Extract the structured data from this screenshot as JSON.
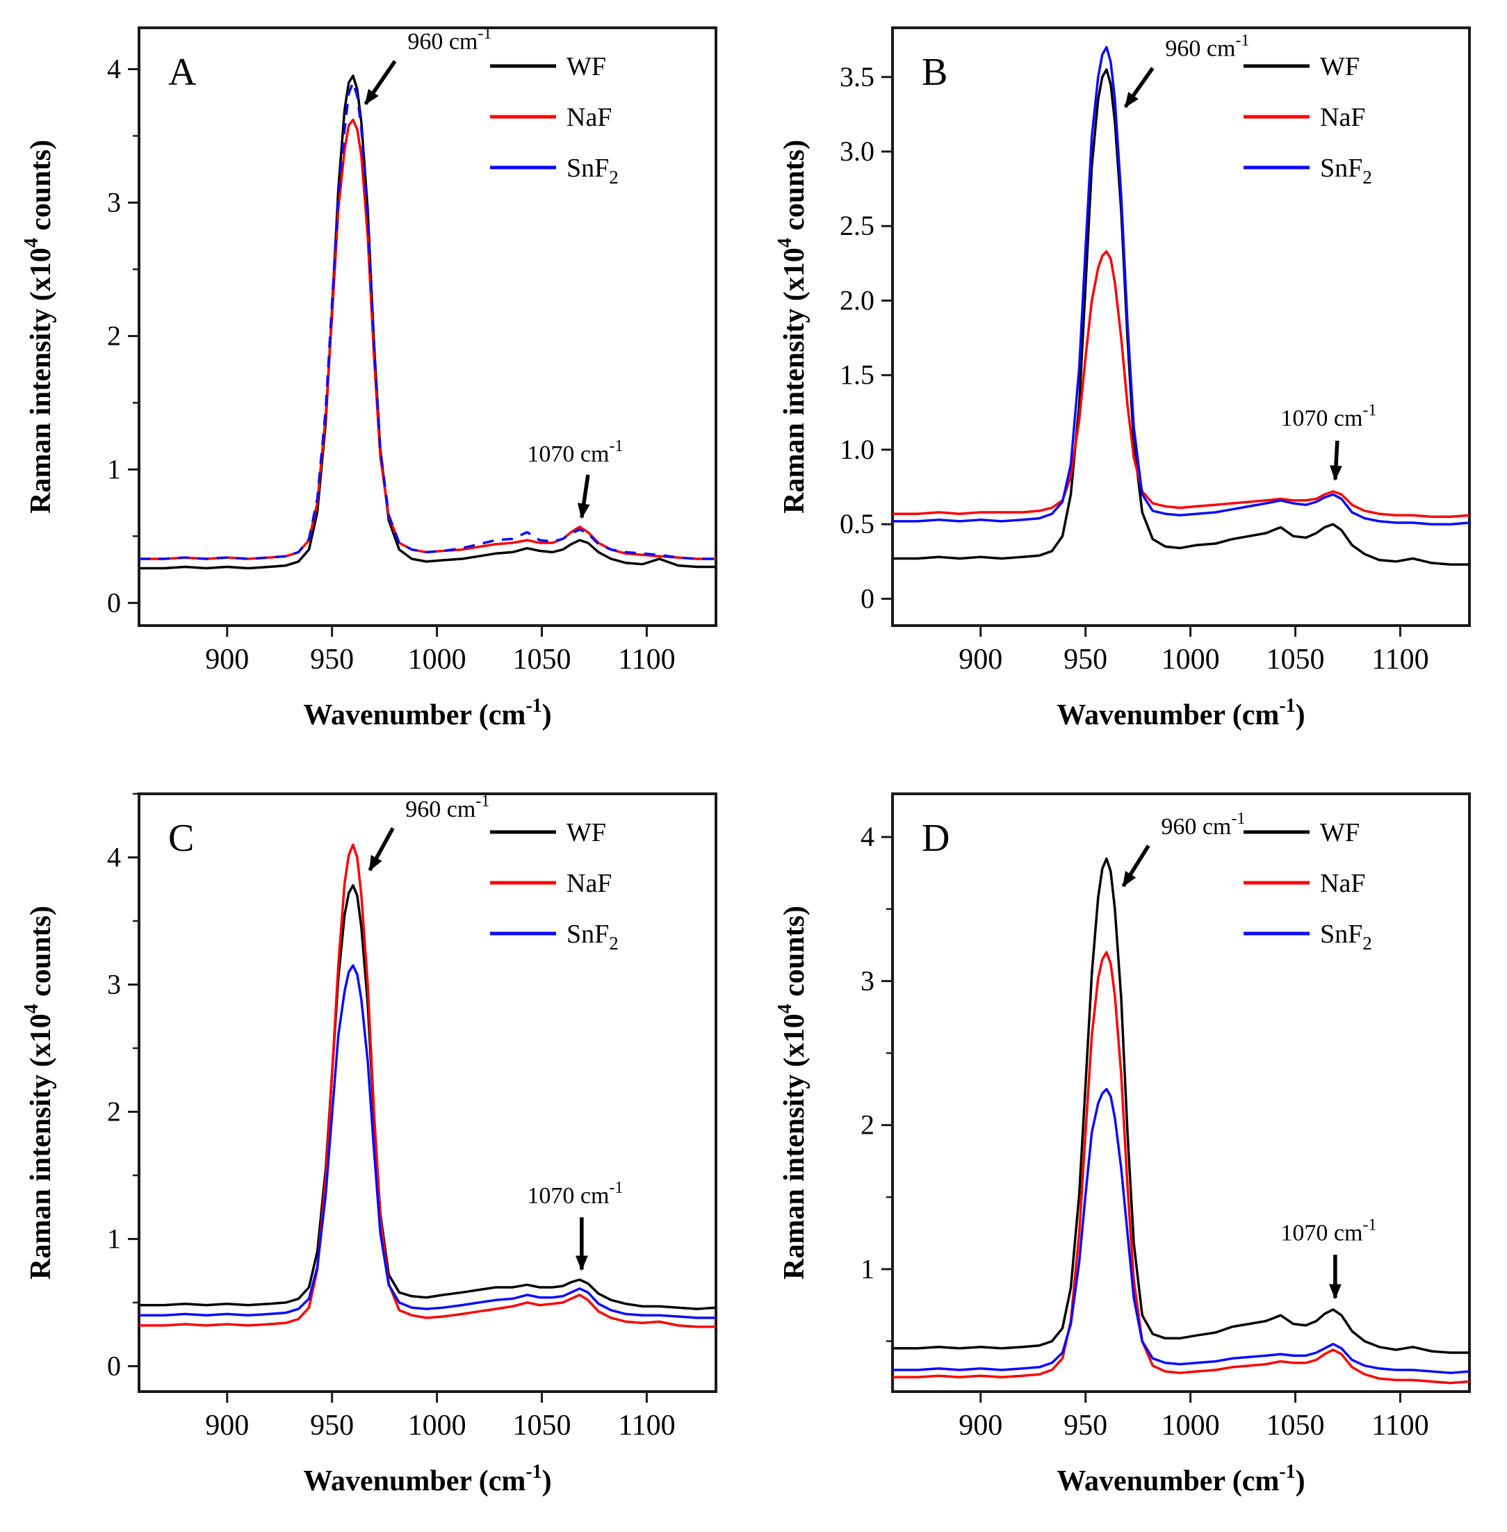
{
  "colors": {
    "WF": "#000000",
    "NaF": "#fe0000",
    "SnF2": "#0a0aff",
    "frame": "#1a1a1a",
    "background": "#ffffff"
  },
  "legend": [
    {
      "name": "WF",
      "label": "WF",
      "sub": ""
    },
    {
      "name": "NaF",
      "label": "NaF",
      "sub": ""
    },
    {
      "name": "SnF2",
      "label": "SnF",
      "sub": "2"
    }
  ],
  "axis": {
    "xlabel": {
      "pre": "Wavenumber (cm",
      "sup": "-1",
      "post": ")"
    },
    "ylabel": {
      "pre": "Raman intensity (x10",
      "sup": "4",
      "post": " counts)"
    }
  },
  "chart_data": [
    {
      "id": "A",
      "type": "line",
      "letter": "A",
      "xlim": [
        858,
        1133
      ],
      "ylim": [
        -0.17,
        4.31
      ],
      "xticks": [
        900,
        950,
        1000,
        1050,
        1100
      ],
      "yticks": [
        {
          "v": 0,
          "label": "0"
        },
        {
          "v": 1,
          "label": "1"
        },
        {
          "v": 2,
          "label": "2"
        },
        {
          "v": 3,
          "label": "3"
        },
        {
          "v": 4,
          "label": "4"
        }
      ],
      "minor_step": 0.5,
      "x": [
        858,
        870,
        880,
        890,
        900,
        910,
        920,
        928,
        934,
        939,
        943,
        947,
        950,
        953,
        956,
        958,
        960,
        962,
        964,
        967,
        970,
        973,
        977,
        982,
        988,
        995,
        1003,
        1012,
        1020,
        1028,
        1036,
        1043,
        1049,
        1055,
        1060,
        1064,
        1068,
        1072,
        1077,
        1083,
        1090,
        1098,
        1106,
        1115,
        1124,
        1133
      ],
      "series": [
        {
          "name": "WF",
          "values": [
            0.26,
            0.26,
            0.27,
            0.26,
            0.27,
            0.26,
            0.27,
            0.28,
            0.31,
            0.4,
            0.68,
            1.35,
            2.2,
            3.1,
            3.7,
            3.9,
            3.95,
            3.85,
            3.6,
            2.95,
            1.95,
            1.15,
            0.62,
            0.4,
            0.33,
            0.31,
            0.32,
            0.33,
            0.35,
            0.37,
            0.38,
            0.41,
            0.39,
            0.38,
            0.4,
            0.44,
            0.47,
            0.45,
            0.38,
            0.33,
            0.3,
            0.29,
            0.33,
            0.28,
            0.27,
            0.27
          ]
        },
        {
          "name": "NaF",
          "values": [
            0.33,
            0.33,
            0.34,
            0.33,
            0.34,
            0.33,
            0.34,
            0.35,
            0.38,
            0.47,
            0.75,
            1.4,
            2.15,
            2.95,
            3.4,
            3.58,
            3.62,
            3.55,
            3.35,
            2.75,
            1.85,
            1.1,
            0.65,
            0.45,
            0.4,
            0.38,
            0.39,
            0.4,
            0.42,
            0.44,
            0.45,
            0.47,
            0.45,
            0.45,
            0.48,
            0.53,
            0.57,
            0.53,
            0.45,
            0.4,
            0.37,
            0.36,
            0.35,
            0.34,
            0.33,
            0.33
          ]
        },
        {
          "name": "SnF2",
          "values": [
            0.33,
            0.33,
            0.34,
            0.33,
            0.34,
            0.33,
            0.34,
            0.35,
            0.38,
            0.48,
            0.78,
            1.45,
            2.25,
            3.05,
            3.55,
            3.82,
            3.9,
            3.8,
            3.55,
            2.9,
            1.95,
            1.15,
            0.66,
            0.45,
            0.4,
            0.38,
            0.39,
            0.41,
            0.44,
            0.47,
            0.48,
            0.53,
            0.47,
            0.46,
            0.48,
            0.52,
            0.55,
            0.52,
            0.44,
            0.4,
            0.38,
            0.37,
            0.36,
            0.34,
            0.33,
            0.33
          ]
        }
      ],
      "annotations": [
        {
          "text": "960 cm",
          "sup": "-1",
          "text_at": [
            986,
            4.15
          ],
          "arrow_from": [
            980,
            4.06
          ],
          "arrow_to": [
            966,
            3.74
          ]
        },
        {
          "text": "1070 cm",
          "sup": "-1",
          "text_at": [
            1043,
            1.06
          ],
          "arrow_from": [
            1072,
            0.96
          ],
          "arrow_to": [
            1069,
            0.64
          ]
        }
      ]
    },
    {
      "id": "B",
      "type": "line",
      "letter": "B",
      "xlim": [
        858,
        1133
      ],
      "ylim": [
        -0.18,
        3.83
      ],
      "xticks": [
        900,
        950,
        1000,
        1050,
        1100
      ],
      "yticks": [
        {
          "v": 0,
          "label": "0"
        },
        {
          "v": 0.5,
          "label": "0.5"
        },
        {
          "v": 1,
          "label": "1.0"
        },
        {
          "v": 1.5,
          "label": "1.5"
        },
        {
          "v": 2,
          "label": "2.0"
        },
        {
          "v": 2.5,
          "label": "2.5"
        },
        {
          "v": 3,
          "label": "3.0"
        },
        {
          "v": 3.5,
          "label": "3.5"
        }
      ],
      "minor_step": null,
      "x": [
        858,
        870,
        880,
        890,
        900,
        910,
        920,
        928,
        934,
        939,
        943,
        947,
        950,
        953,
        956,
        958,
        960,
        962,
        964,
        967,
        970,
        973,
        977,
        982,
        988,
        995,
        1003,
        1012,
        1020,
        1028,
        1036,
        1043,
        1049,
        1055,
        1060,
        1064,
        1068,
        1072,
        1077,
        1083,
        1090,
        1098,
        1106,
        1115,
        1124,
        1133
      ],
      "series": [
        {
          "name": "WF",
          "values": [
            0.27,
            0.27,
            0.28,
            0.27,
            0.28,
            0.27,
            0.28,
            0.29,
            0.32,
            0.42,
            0.7,
            1.3,
            2.1,
            2.9,
            3.35,
            3.5,
            3.55,
            3.45,
            3.2,
            2.6,
            1.75,
            1.05,
            0.58,
            0.4,
            0.35,
            0.34,
            0.36,
            0.37,
            0.4,
            0.42,
            0.44,
            0.48,
            0.42,
            0.41,
            0.44,
            0.48,
            0.5,
            0.46,
            0.36,
            0.3,
            0.26,
            0.25,
            0.27,
            0.24,
            0.23,
            0.23
          ]
        },
        {
          "name": "NaF",
          "values": [
            0.57,
            0.57,
            0.58,
            0.57,
            0.58,
            0.58,
            0.58,
            0.59,
            0.61,
            0.66,
            0.82,
            1.2,
            1.62,
            2.0,
            2.22,
            2.3,
            2.33,
            2.28,
            2.12,
            1.75,
            1.3,
            0.95,
            0.72,
            0.64,
            0.62,
            0.61,
            0.62,
            0.63,
            0.64,
            0.65,
            0.66,
            0.67,
            0.66,
            0.66,
            0.67,
            0.7,
            0.72,
            0.7,
            0.63,
            0.59,
            0.57,
            0.56,
            0.56,
            0.55,
            0.55,
            0.56
          ]
        },
        {
          "name": "SnF2",
          "values": [
            0.52,
            0.52,
            0.53,
            0.52,
            0.53,
            0.52,
            0.53,
            0.54,
            0.57,
            0.65,
            0.9,
            1.55,
            2.35,
            3.1,
            3.5,
            3.65,
            3.7,
            3.6,
            3.35,
            2.7,
            1.85,
            1.15,
            0.7,
            0.59,
            0.57,
            0.56,
            0.57,
            0.58,
            0.6,
            0.62,
            0.64,
            0.66,
            0.64,
            0.63,
            0.65,
            0.68,
            0.7,
            0.67,
            0.58,
            0.54,
            0.52,
            0.51,
            0.51,
            0.5,
            0.5,
            0.51
          ]
        }
      ],
      "annotations": [
        {
          "text": "960 cm",
          "sup": "-1",
          "text_at": [
            988,
            3.64
          ],
          "arrow_from": [
            982,
            3.56
          ],
          "arrow_to": [
            969,
            3.3
          ]
        },
        {
          "text": "1070 cm",
          "sup": "-1",
          "text_at": [
            1043,
            1.16
          ],
          "arrow_from": [
            1070,
            1.06
          ],
          "arrow_to": [
            1069,
            0.8
          ]
        }
      ]
    },
    {
      "id": "C",
      "type": "line",
      "letter": "C",
      "xlim": [
        858,
        1133
      ],
      "ylim": [
        -0.2,
        4.5
      ],
      "xticks": [
        900,
        950,
        1000,
        1050,
        1100
      ],
      "yticks": [
        {
          "v": 0,
          "label": "0"
        },
        {
          "v": 1,
          "label": "1"
        },
        {
          "v": 2,
          "label": "2"
        },
        {
          "v": 3,
          "label": "3"
        },
        {
          "v": 4,
          "label": "4"
        }
      ],
      "minor_step": 0.5,
      "x": [
        858,
        870,
        880,
        890,
        900,
        910,
        920,
        928,
        934,
        939,
        943,
        947,
        950,
        953,
        956,
        958,
        960,
        962,
        964,
        967,
        970,
        973,
        977,
        982,
        988,
        995,
        1003,
        1012,
        1020,
        1028,
        1036,
        1043,
        1049,
        1055,
        1060,
        1064,
        1068,
        1072,
        1077,
        1083,
        1090,
        1098,
        1106,
        1115,
        1124,
        1133
      ],
      "series": [
        {
          "name": "WF",
          "values": [
            0.48,
            0.48,
            0.49,
            0.48,
            0.49,
            0.48,
            0.49,
            0.5,
            0.53,
            0.62,
            0.9,
            1.55,
            2.3,
            3.05,
            3.55,
            3.72,
            3.78,
            3.7,
            3.45,
            2.85,
            1.95,
            1.2,
            0.72,
            0.58,
            0.55,
            0.54,
            0.56,
            0.58,
            0.6,
            0.62,
            0.62,
            0.64,
            0.62,
            0.62,
            0.63,
            0.66,
            0.68,
            0.65,
            0.57,
            0.52,
            0.49,
            0.47,
            0.47,
            0.46,
            0.45,
            0.46
          ]
        },
        {
          "name": "NaF",
          "values": [
            0.32,
            0.32,
            0.33,
            0.32,
            0.33,
            0.32,
            0.33,
            0.34,
            0.37,
            0.46,
            0.76,
            1.48,
            2.3,
            3.15,
            3.8,
            4.02,
            4.1,
            4.0,
            3.7,
            3.0,
            2.0,
            1.18,
            0.65,
            0.44,
            0.4,
            0.38,
            0.39,
            0.41,
            0.43,
            0.45,
            0.47,
            0.5,
            0.48,
            0.49,
            0.5,
            0.53,
            0.56,
            0.52,
            0.43,
            0.38,
            0.35,
            0.34,
            0.35,
            0.32,
            0.31,
            0.31
          ]
        },
        {
          "name": "SnF2",
          "values": [
            0.4,
            0.4,
            0.41,
            0.4,
            0.41,
            0.4,
            0.41,
            0.42,
            0.45,
            0.53,
            0.78,
            1.35,
            1.98,
            2.6,
            2.95,
            3.1,
            3.15,
            3.08,
            2.88,
            2.4,
            1.7,
            1.05,
            0.64,
            0.5,
            0.46,
            0.45,
            0.46,
            0.48,
            0.5,
            0.52,
            0.53,
            0.56,
            0.54,
            0.54,
            0.55,
            0.58,
            0.61,
            0.58,
            0.49,
            0.44,
            0.41,
            0.4,
            0.4,
            0.39,
            0.38,
            0.38
          ]
        }
      ],
      "annotations": [
        {
          "text": "960 cm",
          "sup": "-1",
          "text_at": [
            985,
            4.32
          ],
          "arrow_from": [
            979,
            4.23
          ],
          "arrow_to": [
            968,
            3.9
          ]
        },
        {
          "text": "1070 cm",
          "sup": "-1",
          "text_at": [
            1043,
            1.28
          ],
          "arrow_from": [
            1069,
            1.17
          ],
          "arrow_to": [
            1069,
            0.76
          ]
        }
      ]
    },
    {
      "id": "D",
      "type": "line",
      "letter": "D",
      "xlim": [
        858,
        1133
      ],
      "ylim": [
        0.15,
        4.3
      ],
      "xticks": [
        900,
        950,
        1000,
        1050,
        1100
      ],
      "yticks": [
        {
          "v": 1,
          "label": "1"
        },
        {
          "v": 2,
          "label": "2"
        },
        {
          "v": 3,
          "label": "3"
        },
        {
          "v": 4,
          "label": "4"
        }
      ],
      "minor_step": 0.5,
      "x": [
        858,
        870,
        880,
        890,
        900,
        910,
        920,
        928,
        934,
        939,
        943,
        947,
        950,
        953,
        956,
        958,
        960,
        962,
        964,
        967,
        970,
        973,
        977,
        982,
        988,
        995,
        1003,
        1012,
        1020,
        1028,
        1036,
        1043,
        1049,
        1055,
        1060,
        1064,
        1068,
        1072,
        1077,
        1083,
        1090,
        1098,
        1106,
        1115,
        1124,
        1133
      ],
      "series": [
        {
          "name": "WF",
          "values": [
            0.45,
            0.45,
            0.46,
            0.45,
            0.46,
            0.45,
            0.46,
            0.47,
            0.5,
            0.59,
            0.87,
            1.52,
            2.28,
            3.05,
            3.58,
            3.78,
            3.85,
            3.76,
            3.5,
            2.88,
            1.95,
            1.18,
            0.68,
            0.55,
            0.52,
            0.52,
            0.54,
            0.56,
            0.6,
            0.62,
            0.64,
            0.68,
            0.62,
            0.61,
            0.64,
            0.69,
            0.72,
            0.68,
            0.57,
            0.5,
            0.46,
            0.44,
            0.46,
            0.43,
            0.42,
            0.42
          ]
        },
        {
          "name": "NaF",
          "values": [
            0.25,
            0.25,
            0.26,
            0.25,
            0.26,
            0.25,
            0.26,
            0.27,
            0.3,
            0.38,
            0.64,
            1.25,
            1.95,
            2.62,
            3.02,
            3.15,
            3.2,
            3.12,
            2.9,
            2.35,
            1.58,
            0.92,
            0.5,
            0.33,
            0.29,
            0.28,
            0.29,
            0.3,
            0.32,
            0.33,
            0.34,
            0.36,
            0.35,
            0.35,
            0.37,
            0.41,
            0.44,
            0.41,
            0.32,
            0.27,
            0.24,
            0.23,
            0.23,
            0.22,
            0.21,
            0.22
          ]
        },
        {
          "name": "SnF2",
          "values": [
            0.3,
            0.3,
            0.31,
            0.3,
            0.31,
            0.3,
            0.31,
            0.32,
            0.35,
            0.42,
            0.62,
            1.05,
            1.52,
            1.95,
            2.15,
            2.22,
            2.25,
            2.2,
            2.05,
            1.7,
            1.25,
            0.8,
            0.5,
            0.38,
            0.35,
            0.34,
            0.35,
            0.36,
            0.38,
            0.39,
            0.4,
            0.41,
            0.4,
            0.4,
            0.42,
            0.45,
            0.48,
            0.45,
            0.37,
            0.33,
            0.31,
            0.3,
            0.3,
            0.29,
            0.28,
            0.29
          ]
        }
      ],
      "annotations": [
        {
          "text": "960 cm",
          "sup": "-1",
          "text_at": [
            986,
            4.02
          ],
          "arrow_from": [
            980,
            3.94
          ],
          "arrow_to": [
            968,
            3.66
          ]
        },
        {
          "text": "1070 cm",
          "sup": "-1",
          "text_at": [
            1043,
            1.2
          ],
          "arrow_from": [
            1069,
            1.1
          ],
          "arrow_to": [
            1069,
            0.8
          ]
        }
      ]
    }
  ]
}
